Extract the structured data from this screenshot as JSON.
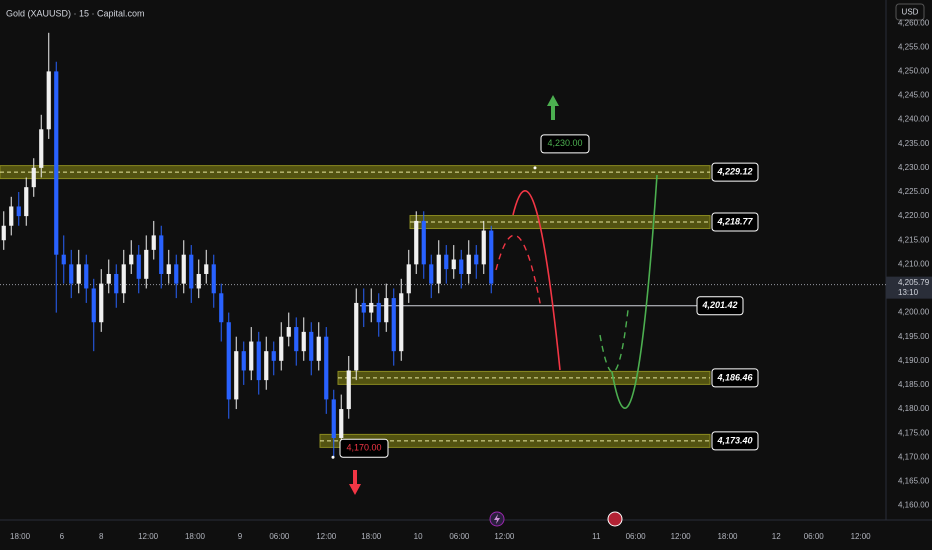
{
  "chart_data": {
    "type": "candlestick",
    "title": "Gold (XAUUSD) · 15 · Capital.com",
    "currency": "USD",
    "up_color": "#f0f0f0",
    "down_color": "#2962ff",
    "xlim": [
      0,
      472
    ],
    "ylim": [
      4157,
      4264.8
    ],
    "yticks": [
      {
        "value": 4160,
        "label": "4,160.00"
      },
      {
        "value": 4165,
        "label": "4,165.00"
      },
      {
        "value": 4170,
        "label": "4,170.00"
      },
      {
        "value": 4175,
        "label": "4,175.00"
      },
      {
        "value": 4180,
        "label": "4,180.00"
      },
      {
        "value": 4185,
        "label": "4,185.00"
      },
      {
        "value": 4190,
        "label": "4,190.00"
      },
      {
        "value": 4195,
        "label": "4,195.00"
      },
      {
        "value": 4200,
        "label": "4,200.00"
      },
      {
        "value": 4210,
        "label": "4,210.00"
      },
      {
        "value": 4215,
        "label": "4,215.00"
      },
      {
        "value": 4220,
        "label": "4,220.00"
      },
      {
        "value": 4225,
        "label": "4,225.00"
      },
      {
        "value": 4230,
        "label": "4,230.00"
      },
      {
        "value": 4235,
        "label": "4,235.00"
      },
      {
        "value": 4240,
        "label": "4,240.00"
      },
      {
        "value": 4245,
        "label": "4,245.00"
      },
      {
        "value": 4250,
        "label": "4,250.00"
      },
      {
        "value": 4255,
        "label": "4,255.00"
      },
      {
        "value": 4260,
        "label": "4,260.00"
      }
    ],
    "xticks": [
      {
        "value": 10.7,
        "label": "18:00"
      },
      {
        "value": 33,
        "label": "6"
      },
      {
        "value": 54,
        "label": "8"
      },
      {
        "value": 79,
        "label": "12:00"
      },
      {
        "value": 104,
        "label": "18:00"
      },
      {
        "value": 128,
        "label": "9"
      },
      {
        "value": 149,
        "label": "06:00"
      },
      {
        "value": 174,
        "label": "12:00"
      },
      {
        "value": 198,
        "label": "18:00"
      },
      {
        "value": 223,
        "label": "10"
      },
      {
        "value": 245,
        "label": "06:00"
      },
      {
        "value": 269,
        "label": "12:00"
      },
      {
        "value": 318,
        "label": "11"
      },
      {
        "value": 339,
        "label": "06:00"
      },
      {
        "value": 363,
        "label": "12:00"
      },
      {
        "value": 388,
        "label": "18:00"
      },
      {
        "value": 414,
        "label": "12"
      },
      {
        "value": 434,
        "label": "06:00"
      },
      {
        "value": 459,
        "label": "12:00"
      }
    ],
    "x": [
      2,
      6,
      10,
      14,
      18,
      22,
      26,
      30,
      34,
      38,
      42,
      46,
      50,
      54,
      58,
      62,
      66,
      70,
      74,
      78,
      82,
      86,
      90,
      94,
      98,
      102,
      106,
      110,
      114,
      118,
      122,
      126,
      130,
      134,
      138,
      142,
      146,
      150,
      154,
      158,
      162,
      166,
      170,
      174,
      178,
      182,
      186,
      190,
      194,
      198,
      202,
      206,
      210,
      214,
      218,
      222,
      226,
      230,
      234,
      238,
      242,
      246,
      250,
      254,
      258,
      262
    ],
    "candles": [
      [
        4215,
        4221,
        4213,
        4218
      ],
      [
        4218,
        4224,
        4216,
        4222
      ],
      [
        4222,
        4225,
        4218,
        4220
      ],
      [
        4220,
        4228,
        4218,
        4226
      ],
      [
        4226,
        4232,
        4224,
        4230
      ],
      [
        4230,
        4241,
        4228,
        4238
      ],
      [
        4238,
        4258,
        4236,
        4250
      ],
      [
        4250,
        4252,
        4200,
        4212
      ],
      [
        4212,
        4216,
        4206,
        4210
      ],
      [
        4210,
        4213,
        4203,
        4206
      ],
      [
        4206,
        4213,
        4204,
        4210
      ],
      [
        4210,
        4212,
        4202,
        4205
      ],
      [
        4205,
        4207,
        4192,
        4198
      ],
      [
        4198,
        4209,
        4196,
        4206
      ],
      [
        4206,
        4211,
        4204,
        4208
      ],
      [
        4208,
        4210,
        4201,
        4204
      ],
      [
        4204,
        4213,
        4202,
        4210
      ],
      [
        4210,
        4215,
        4208,
        4212
      ],
      [
        4212,
        4214,
        4204,
        4207
      ],
      [
        4207,
        4216,
        4205,
        4213
      ],
      [
        4213,
        4219,
        4211,
        4216
      ],
      [
        4216,
        4218,
        4205,
        4208
      ],
      [
        4208,
        4213,
        4206,
        4210
      ],
      [
        4210,
        4212,
        4203,
        4206
      ],
      [
        4206,
        4215,
        4204,
        4212
      ],
      [
        4212,
        4214,
        4202,
        4205
      ],
      [
        4205,
        4211,
        4203,
        4208
      ],
      [
        4208,
        4213,
        4206,
        4210
      ],
      [
        4210,
        4212,
        4201,
        4204
      ],
      [
        4204,
        4206,
        4194,
        4198
      ],
      [
        4198,
        4200,
        4178,
        4182
      ],
      [
        4182,
        4195,
        4180,
        4192
      ],
      [
        4192,
        4194,
        4185,
        4188
      ],
      [
        4188,
        4197,
        4186,
        4194
      ],
      [
        4194,
        4196,
        4183,
        4186
      ],
      [
        4186,
        4195,
        4184,
        4192
      ],
      [
        4192,
        4194,
        4187,
        4190
      ],
      [
        4190,
        4198,
        4188,
        4195
      ],
      [
        4195,
        4200,
        4193,
        4197
      ],
      [
        4197,
        4199,
        4189,
        4192
      ],
      [
        4192,
        4199,
        4190,
        4196
      ],
      [
        4196,
        4198,
        4187,
        4190
      ],
      [
        4190,
        4198,
        4188,
        4195
      ],
      [
        4195,
        4197,
        4179,
        4182
      ],
      [
        4182,
        4184,
        4170,
        4174
      ],
      [
        4174,
        4183,
        4172,
        4180
      ],
      [
        4180,
        4191,
        4178,
        4188
      ],
      [
        4188,
        4205,
        4186,
        4202
      ],
      [
        4202,
        4205,
        4197,
        4200
      ],
      [
        4200,
        4205,
        4198,
        4202
      ],
      [
        4202,
        4204,
        4195,
        4198
      ],
      [
        4198,
        4206,
        4196,
        4203
      ],
      [
        4203,
        4205,
        4189,
        4192
      ],
      [
        4192,
        4207,
        4190,
        4204
      ],
      [
        4204,
        4213,
        4202,
        4210
      ],
      [
        4210,
        4221,
        4208,
        4219
      ],
      [
        4219,
        4221,
        4207,
        4210
      ],
      [
        4210,
        4212,
        4203,
        4206
      ],
      [
        4206,
        4215,
        4204,
        4212
      ],
      [
        4212,
        4214,
        4206,
        4209
      ],
      [
        4209,
        4214,
        4207,
        4211
      ],
      [
        4211,
        4213,
        4205,
        4208
      ],
      [
        4208,
        4215,
        4206,
        4212
      ],
      [
        4212,
        4214,
        4207,
        4210
      ],
      [
        4210,
        4219,
        4208,
        4217
      ],
      [
        4217,
        4218,
        4204,
        4206
      ]
    ],
    "levels": [
      {
        "value": 4229.12,
        "label": "4,229.12"
      },
      {
        "value": 4218.77,
        "label": "4,218.77"
      },
      {
        "value": 4201.42,
        "label": "4,201.42"
      },
      {
        "value": 4186.46,
        "label": "4,186.46"
      },
      {
        "value": 4173.4,
        "label": "4,173.40"
      }
    ],
    "callouts": [
      {
        "value": 4230,
        "label": "4,230.00",
        "color": "#4caf50"
      },
      {
        "value": 4170,
        "label": "4,170.00",
        "color": "#f23645"
      }
    ],
    "current_price": {
      "value": 4205.79,
      "label": "4,205.79",
      "countdown": "13:10"
    }
  }
}
